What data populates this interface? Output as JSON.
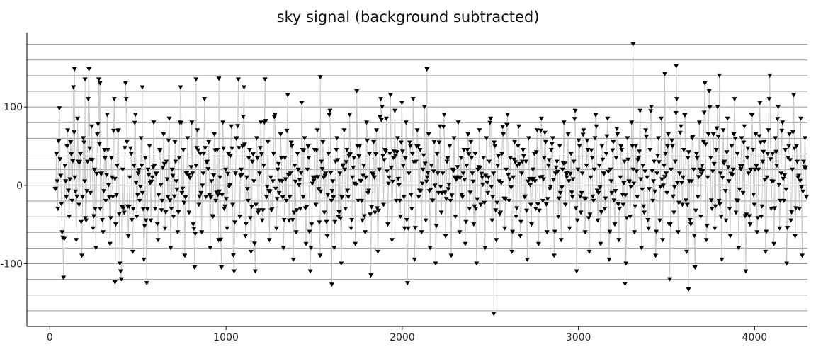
{
  "chart_data": {
    "type": "line",
    "title": "sky signal (background subtracted)",
    "xlabel": "",
    "ylabel": "",
    "xlim": [
      -130,
      4300
    ],
    "ylim": [
      -180,
      195
    ],
    "x_ticks": [
      0,
      1000,
      2000,
      3000,
      4000
    ],
    "x_tick_labels": [
      "0",
      "1000",
      "2000",
      "3000",
      "4000"
    ],
    "y_ticks": [
      -100,
      0,
      100
    ],
    "y_tick_labels": [
      "-100",
      "0",
      "100"
    ],
    "grid": "horizontal",
    "marker": "triangle-down",
    "line_color": "#c8c8c8",
    "marker_color": "#000000",
    "series": [
      {
        "x_start": 30,
        "x_end": 4300,
        "x_step": 8,
        "values": [
          -5,
          40,
          -30,
          98,
          12,
          -60,
          -118,
          25,
          -15,
          70,
          -40,
          55,
          -20,
          125,
          10,
          -70,
          85,
          -25,
          40,
          -90,
          60,
          5,
          -45,
          30,
          148,
          -10,
          75,
          -55,
          20,
          -80,
          65,
          135,
          -30,
          15,
          -60,
          45,
          -20,
          90,
          0,
          -75,
          35,
          -15,
          110,
          -50,
          25,
          70,
          -100,
          -120,
          20,
          -35,
          130,
          55,
          -65,
          10,
          40,
          -85,
          25,
          90,
          -40,
          15,
          -20,
          60,
          -10,
          -95,
          35,
          -125,
          20,
          50,
          -45,
          10,
          80,
          -30,
          15,
          -70,
          45,
          0,
          -20,
          65,
          -55,
          30,
          -15,
          85,
          -80,
          20,
          -40,
          55,
          5,
          -60,
          35,
          125,
          -10,
          45,
          -90,
          15,
          60,
          -35,
          10,
          80,
          -50,
          -105,
          25,
          70,
          -25,
          40,
          -60,
          15,
          110,
          -15,
          30,
          55,
          -80,
          5,
          -40,
          65,
          -20,
          45,
          -70,
          10,
          -105,
          80,
          -30,
          20,
          -55,
          40,
          0,
          75,
          -25,
          -110,
          15,
          60,
          135,
          -40,
          20,
          50,
          125,
          -65,
          10,
          -20,
          45,
          -85,
          30,
          5,
          -110,
          60,
          -35,
          15,
          80,
          -45,
          25,
          135,
          -15,
          55,
          -70,
          10,
          -30,
          40,
          90,
          -55,
          20,
          -10,
          65,
          5,
          -80,
          35,
          -20,
          115,
          -45,
          15,
          50,
          -95,
          25,
          -60,
          40,
          0,
          -30,
          105,
          -15,
          60,
          -75,
          20,
          35,
          -110,
          -50,
          10,
          45,
          -25,
          70,
          -5,
          -90,
          30,
          55,
          -35,
          15,
          -65,
          40,
          95,
          -20,
          5,
          -80,
          30,
          60,
          -40,
          15,
          -100,
          25,
          70,
          -30,
          45,
          -15,
          90,
          -55,
          10,
          35,
          -75,
          120,
          -20,
          50,
          5,
          -45,
          25,
          -60,
          80,
          -10,
          40,
          -115,
          15,
          55,
          -35,
          70,
          -85,
          20,
          110,
          100,
          -25,
          45,
          85,
          -50,
          10,
          115,
          -70,
          35,
          95,
          -20,
          60,
          0,
          -40,
          105,
          25,
          -55,
          80,
          -125,
          15,
          50,
          -30,
          110,
          -95,
          30,
          70,
          -15,
          45,
          -60,
          20,
          100,
          -45,
          10,
          65,
          -80,
          25,
          -20,
          55,
          -100,
          40,
          -10,
          75,
          -35,
          15,
          90,
          -65,
          30,
          -5,
          50,
          -90,
          20,
          60,
          -40,
          10,
          80,
          -60,
          35,
          -15,
          45,
          -75,
          25,
          65,
          -30,
          55,
          15,
          -50,
          40,
          -100,
          20,
          70,
          -25,
          10,
          35,
          -80,
          60,
          -10,
          30,
          85,
          -45,
          15,
          50,
          -70,
          25,
          5,
          -35,
          40,
          65,
          -55,
          20,
          90,
          -20,
          35,
          -85,
          10,
          55,
          -40,
          25,
          75,
          -65,
          15,
          45,
          -15,
          30,
          -95,
          60,
          0,
          -50,
          20,
          40,
          -30,
          70,
          -75,
          10,
          85,
          -20,
          35,
          55,
          -60,
          25,
          -5,
          45,
          60,
          -90,
          15,
          30,
          -40,
          50,
          -70,
          20,
          80,
          -25,
          10,
          65,
          -55,
          40,
          -15,
          30,
          95,
          -110,
          20,
          50,
          -35,
          15,
          70,
          -60,
          25,
          45,
          -85,
          10,
          35,
          -20,
          60,
          75,
          -45,
          25,
          -75,
          50,
          15,
          -30,
          40,
          85,
          -95,
          20,
          -10,
          55,
          -50,
          35,
          65,
          -70,
          10,
          45,
          -25,
          30,
          -100,
          60,
          5,
          -40,
          80,
          20,
          -60,
          50,
          -15,
          35,
          95,
          -80,
          25,
          -35,
          70,
          10,
          -55,
          45,
          100,
          -20,
          30,
          -90,
          15,
          60,
          -45,
          85,
          -70,
          25,
          40,
          -10,
          65,
          -120,
          20,
          50,
          -35,
          30,
          110,
          -60,
          15,
          75,
          -25,
          45,
          90,
          -85,
          35,
          5,
          -50,
          60,
          20,
          -105,
          40,
          -15,
          80,
          -40,
          25,
          55,
          130,
          -70,
          10,
          120,
          35,
          -30,
          65,
          -55,
          45,
          100,
          -20,
          15,
          -95,
          70,
          30,
          -45,
          85,
          5,
          -65,
          50,
          20,
          110,
          -35,
          40,
          -80,
          25,
          60,
          -10,
          75,
          -110,
          35,
          15,
          -50,
          90,
          45,
          -25,
          65,
          -60,
          20,
          105,
          -40,
          30,
          55,
          -85,
          10,
          70,
          140,
          -30,
          40,
          -75,
          60,
          25,
          100,
          -55,
          15,
          80,
          -20,
          45,
          -100,
          35,
          65,
          -45,
          20,
          115,
          -65,
          50,
          10,
          -30,
          85,
          -90,
          30,
          60,
          -15,
          45,
          95,
          -50,
          25,
          -70,
          75,
          40,
          -35,
          55,
          110,
          -80,
          20,
          65,
          -25,
          35,
          -55,
          90,
          15,
          -40,
          60,
          100,
          -75,
          30,
          45,
          -10,
          70,
          -60,
          25,
          85,
          -95,
          40,
          55,
          -30,
          20,
          115,
          -50,
          35,
          75,
          -20,
          60,
          -85,
          45,
          105,
          25,
          -40,
          80,
          -65,
          10,
          55,
          35,
          -105,
          70,
          90,
          -30,
          20,
          60,
          -55,
          45,
          110,
          -15,
          30,
          -80,
          75,
          50,
          -45,
          25,
          95,
          -70,
          40,
          65,
          -25,
          85,
          15,
          -60,
          55,
          120,
          -35,
          30,
          -90,
          70,
          45,
          -20,
          60,
          -50,
          80,
          25,
          100,
          -75,
          35,
          55,
          -40,
          15,
          90,
          -65,
          45,
          70,
          -30,
          25,
          -110,
          60,
          85,
          -55,
          40,
          115,
          -20,
          30,
          65,
          -85,
          50,
          20,
          -45,
          75,
          105,
          -35,
          40,
          -70,
          55,
          95,
          -15,
          30,
          80,
          -60,
          45,
          125,
          -95,
          25,
          70,
          -40,
          60,
          35,
          -80,
          50,
          110,
          -25,
          20,
          85,
          -55,
          40,
          65,
          -130,
          30,
          100,
          -45,
          75,
          15,
          -70,
          55,
          90,
          -35,
          45,
          120,
          -20,
          35,
          -60,
          80,
          25,
          60,
          -90,
          50,
          105,
          -45,
          40,
          70,
          -15,
          30,
          -75,
          95,
          55,
          -50,
          20,
          85,
          -30,
          65,
          45,
          -100,
          75,
          110,
          -40,
          35,
          60,
          -65,
          50,
          90,
          -20,
          40,
          -85,
          70,
          25,
          -55,
          95,
          115,
          -35,
          45,
          80,
          -60,
          30,
          65,
          -25,
          55,
          -95,
          40,
          100,
          -45,
          70,
          20,
          -75,
          85,
          50,
          -30,
          60,
          125,
          -55,
          35,
          75,
          -20,
          45,
          -90,
          65,
          105,
          -40,
          30,
          80,
          -70,
          55,
          95,
          -25,
          40,
          60,
          -60,
          50,
          115,
          -35,
          75,
          -100,
          30,
          85,
          -50,
          65,
          45,
          -30,
          90,
          -80,
          55,
          110,
          -15,
          40,
          70,
          -60,
          35,
          100,
          -45,
          80,
          25,
          -65,
          60,
          95,
          -35,
          45,
          -105,
          75,
          50,
          -25,
          85,
          120,
          -55,
          40,
          65,
          -40,
          90,
          30,
          -70,
          55,
          105,
          -20,
          45,
          80,
          -90,
          35,
          60,
          -50,
          75,
          110,
          -30,
          50,
          85,
          -65,
          40,
          95,
          -40,
          65,
          -60,
          55
        ],
        "peaks": [
          [
            140,
            148
          ],
          [
            200,
            135
          ],
          [
            285,
            130
          ],
          [
            525,
            125
          ],
          [
            830,
            135
          ],
          [
            960,
            136
          ],
          [
            1535,
            138
          ],
          [
            2140,
            148
          ],
          [
            2520,
            -164
          ],
          [
            3310,
            180
          ],
          [
            3555,
            152
          ],
          [
            3490,
            142
          ],
          [
            3800,
            140
          ],
          [
            3625,
            -133
          ],
          [
            370,
            -124
          ],
          [
            1600,
            -127
          ],
          [
            3265,
            -126
          ]
        ]
      }
    ]
  }
}
